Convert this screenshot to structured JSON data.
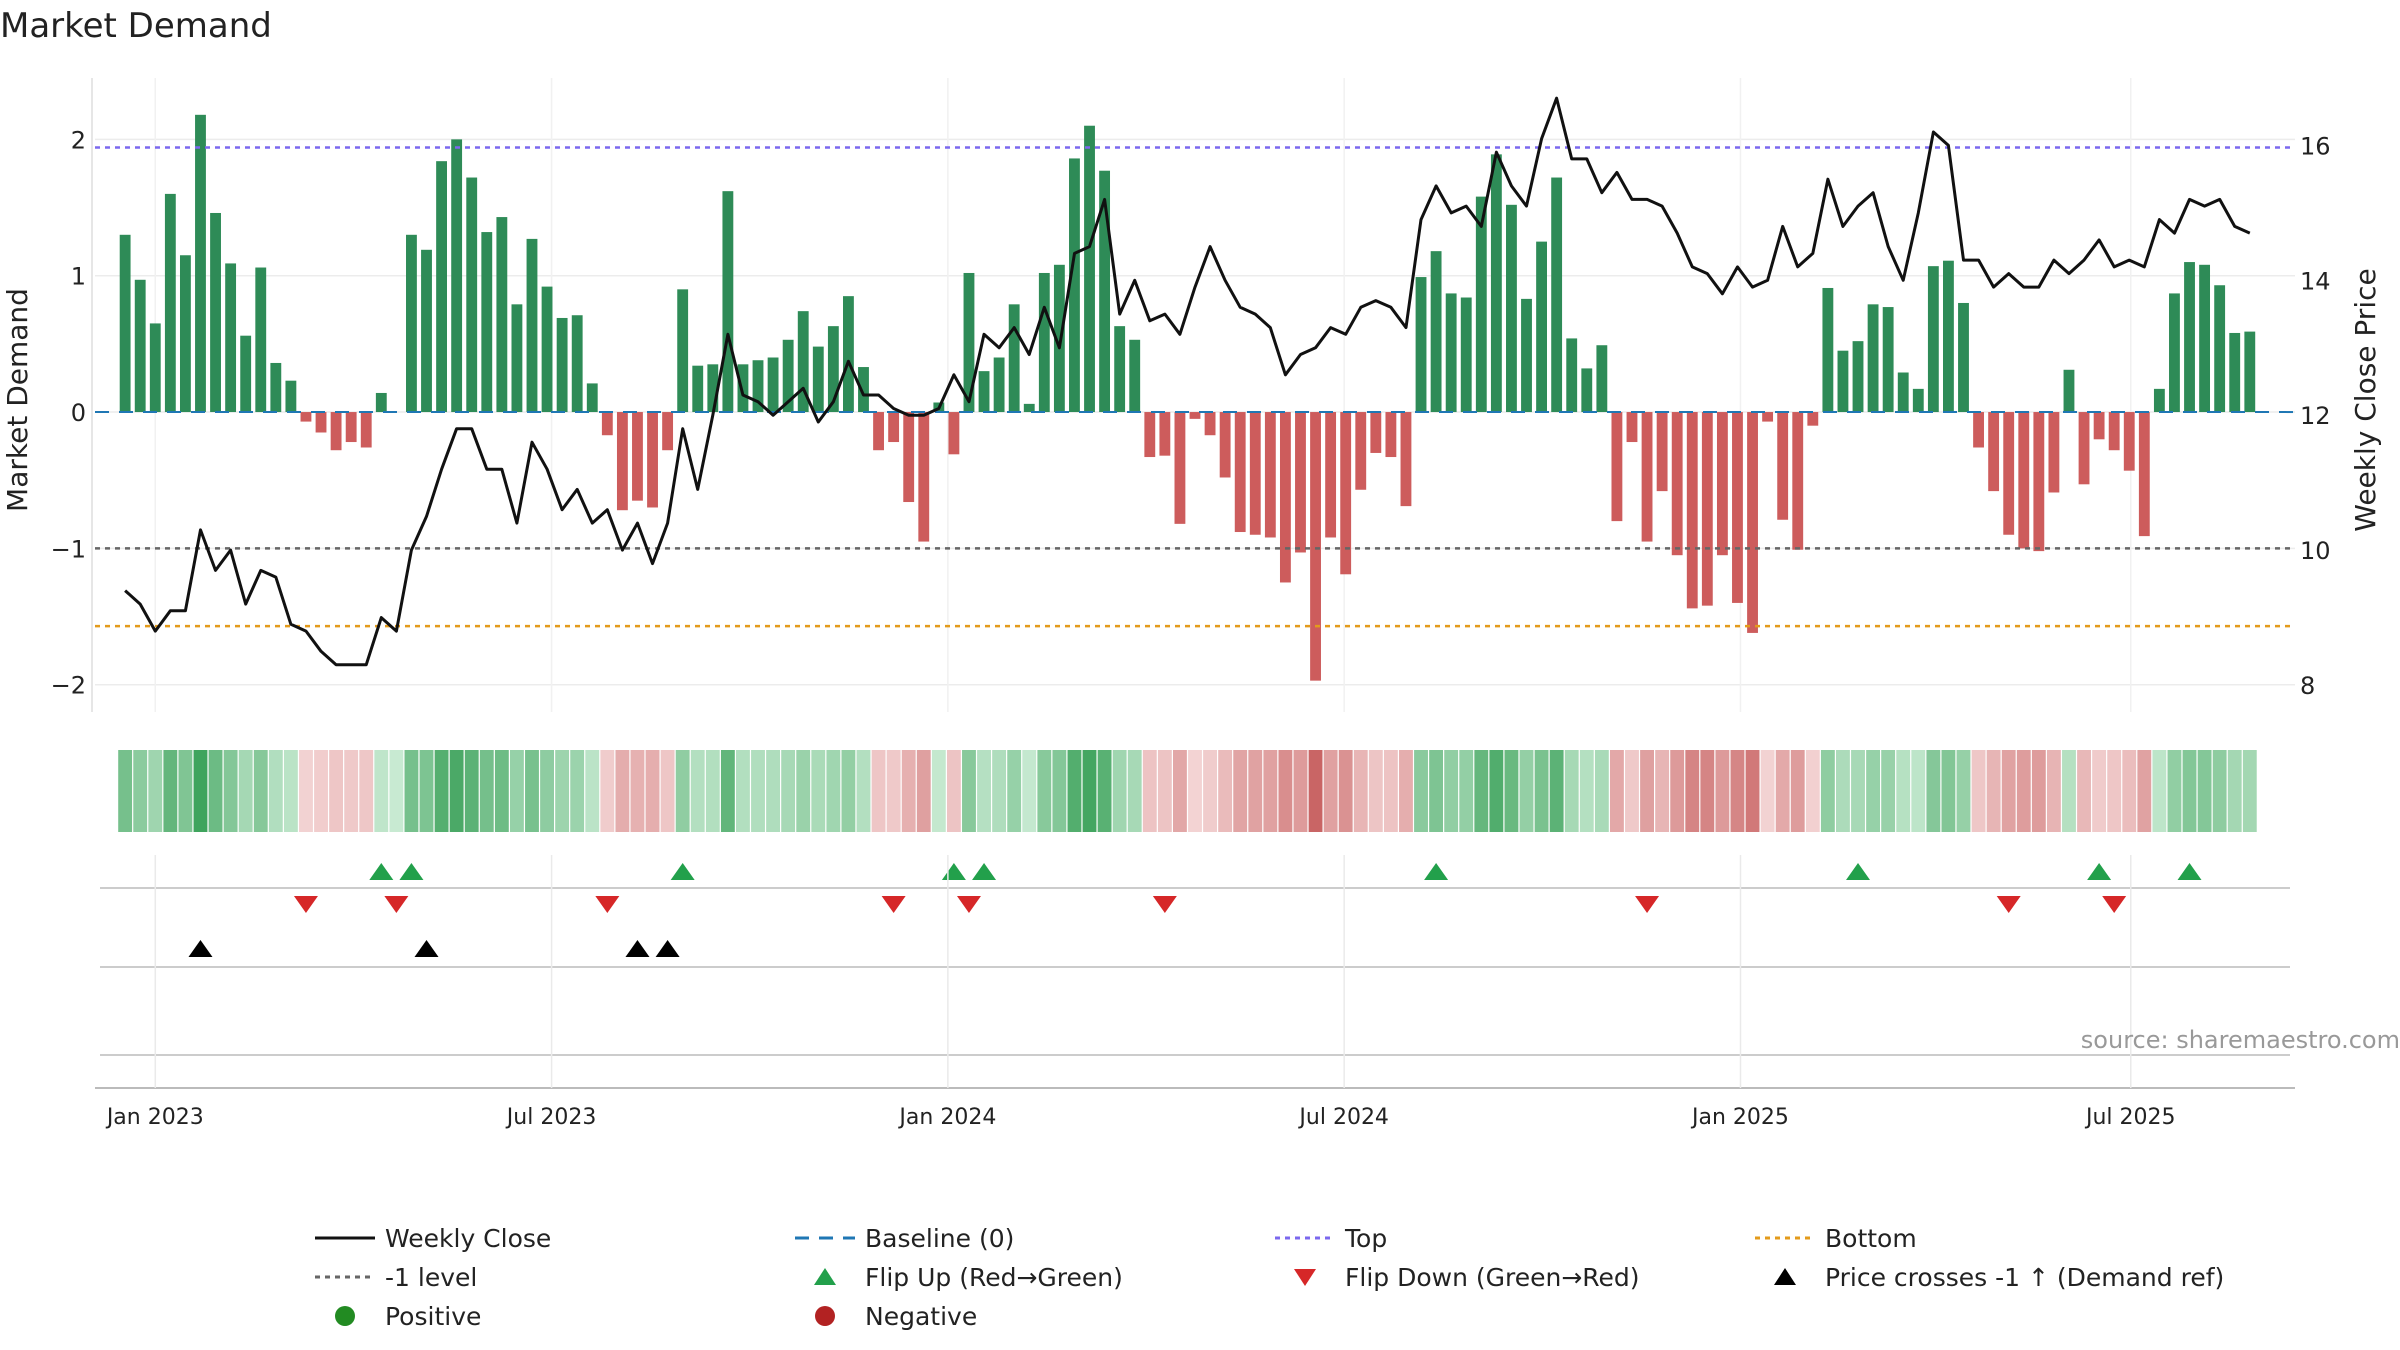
{
  "chart_data": {
    "type": "bar",
    "title": "Market Demand",
    "ylabel_left": "Market Demand",
    "ylabel_right": "Weekly Close Price",
    "source": "source: sharemaestro.com",
    "ylim_left": [
      -2.2,
      2.45
    ],
    "yticks_left": [
      {
        "v": 2,
        "label": "2"
      },
      {
        "v": 1,
        "label": "1"
      },
      {
        "v": 0,
        "label": "0"
      },
      {
        "v": -1,
        "label": "−1"
      },
      {
        "v": -2,
        "label": "−2"
      }
    ],
    "ylim_right": [
      7.6,
      17.0
    ],
    "yticks_right": [
      {
        "v": 16,
        "label": "16"
      },
      {
        "v": 14,
        "label": "14"
      },
      {
        "v": 12,
        "label": "12"
      },
      {
        "v": 10,
        "label": "10"
      },
      {
        "v": 8,
        "label": "8"
      }
    ],
    "x_range": [
      -2,
      144
    ],
    "xticks": [
      {
        "week": 2,
        "label": "Jan 2023"
      },
      {
        "week": 28.3,
        "label": "Jul 2023"
      },
      {
        "week": 54.6,
        "label": "Jan 2024"
      },
      {
        "week": 80.9,
        "label": "Jul 2024"
      },
      {
        "week": 107.2,
        "label": "Jan 2025"
      },
      {
        "week": 133.1,
        "label": "Jul 2025"
      }
    ],
    "reference_lines": {
      "top": 1.94,
      "bottom": -1.57,
      "minus_one": -1,
      "baseline": 0
    },
    "colors": {
      "positive": "#2e8b57",
      "negative": "#cd5c5c",
      "close": "#111111",
      "top": "#7b68ee",
      "bottom": "#e39b1b",
      "level": "#666666",
      "baseline": "#1f77b4",
      "flip_up": "#22a04b",
      "flip_down": "#d62728",
      "cross": "#000000",
      "dot_positive": "#228b22",
      "dot_negative": "#b22222"
    },
    "series": [
      {
        "name": "Market Demand",
        "values": [
          1.3,
          0.97,
          0.65,
          1.6,
          1.15,
          2.18,
          1.46,
          1.09,
          0.56,
          1.06,
          0.36,
          0.23,
          -0.07,
          -0.15,
          -0.28,
          -0.22,
          -0.26,
          0.14,
          0.0,
          1.3,
          1.19,
          1.84,
          2.0,
          1.72,
          1.32,
          1.43,
          0.79,
          1.27,
          0.92,
          0.69,
          0.71,
          0.21,
          -0.17,
          -0.72,
          -0.65,
          -0.7,
          -0.28,
          0.9,
          0.34,
          0.35,
          1.62,
          0.35,
          0.38,
          0.4,
          0.53,
          0.74,
          0.48,
          0.63,
          0.85,
          0.33,
          -0.28,
          -0.22,
          -0.66,
          -0.95,
          0.07,
          -0.31,
          1.02,
          0.3,
          0.4,
          0.79,
          0.06,
          1.02,
          1.08,
          1.86,
          2.1,
          1.77,
          0.63,
          0.53,
          -0.33,
          -0.32,
          -0.82,
          -0.05,
          -0.17,
          -0.48,
          -0.88,
          -0.9,
          -0.92,
          -1.25,
          -1.03,
          -1.97,
          -0.92,
          -1.19,
          -0.57,
          -0.3,
          -0.33,
          -0.69,
          0.99,
          1.18,
          0.87,
          0.84,
          1.58,
          1.89,
          1.52,
          0.83,
          1.25,
          1.72,
          0.54,
          0.32,
          0.49,
          -0.8,
          -0.22,
          -0.95,
          -0.58,
          -1.05,
          -1.44,
          -1.42,
          -1.05,
          -1.4,
          -1.62,
          -0.07,
          -0.79,
          -1.01,
          -0.1,
          0.91,
          0.45,
          0.52,
          0.79,
          0.77,
          0.29,
          0.17,
          1.07,
          1.11,
          0.8,
          -0.26,
          -0.58,
          -0.9,
          -1.0,
          -1.02,
          -0.59,
          0.31,
          -0.53,
          -0.2,
          -0.28,
          -0.43,
          -0.91,
          0.17,
          0.87,
          1.1,
          1.08,
          0.93,
          0.58,
          0.59
        ]
      },
      {
        "name": "Weekly Close",
        "values": [
          9.4,
          9.2,
          8.8,
          9.1,
          9.1,
          10.3,
          9.7,
          10.0,
          9.2,
          9.7,
          9.6,
          8.9,
          8.8,
          8.5,
          8.3,
          8.3,
          8.3,
          9.0,
          8.8,
          10.0,
          10.5,
          11.2,
          11.8,
          11.8,
          11.2,
          11.2,
          10.4,
          11.6,
          11.2,
          10.6,
          10.9,
          10.4,
          10.6,
          10.0,
          10.4,
          9.8,
          10.4,
          11.8,
          10.9,
          12.0,
          13.2,
          12.3,
          12.2,
          12.0,
          12.2,
          12.4,
          11.9,
          12.2,
          12.8,
          12.3,
          12.3,
          12.1,
          12.0,
          12.0,
          12.1,
          12.6,
          12.2,
          13.2,
          13.0,
          13.3,
          12.9,
          13.6,
          13.0,
          14.4,
          14.5,
          15.2,
          13.5,
          14.0,
          13.4,
          13.5,
          13.2,
          13.9,
          14.5,
          14.0,
          13.6,
          13.5,
          13.3,
          12.6,
          12.9,
          13.0,
          13.3,
          13.2,
          13.6,
          13.7,
          13.6,
          13.3,
          14.9,
          15.4,
          15.0,
          15.1,
          14.8,
          15.9,
          15.4,
          15.1,
          16.1,
          16.7,
          15.8,
          15.8,
          15.3,
          15.6,
          15.2,
          15.2,
          15.1,
          14.7,
          14.2,
          14.1,
          13.8,
          14.2,
          13.9,
          14.0,
          14.8,
          14.2,
          14.4,
          15.5,
          14.8,
          15.1,
          15.3,
          14.5,
          14.0,
          15.0,
          16.2,
          16.0,
          14.3,
          14.3,
          13.9,
          14.1,
          13.9,
          13.9,
          14.3,
          14.1,
          14.3,
          14.6,
          14.2,
          14.3,
          14.2,
          14.9,
          14.7,
          15.2,
          15.1,
          15.2,
          14.8,
          14.7
        ]
      }
    ],
    "flip_up_weeks": [
      17,
      19,
      37,
      55,
      57,
      87,
      115,
      131,
      137
    ],
    "flip_down_weeks": [
      12,
      18,
      32,
      51,
      56,
      69,
      101,
      125,
      132
    ],
    "price_cross_weeks": [
      5,
      20,
      34,
      36
    ],
    "legend": [
      "Weekly Close",
      "Baseline (0)",
      "Top",
      "Bottom",
      "-1 level",
      "Flip Up (Red→Green)",
      "Flip Down (Green→Red)",
      "Price crosses -1 ↑ (Demand ref)",
      "Positive",
      "Negative"
    ]
  }
}
